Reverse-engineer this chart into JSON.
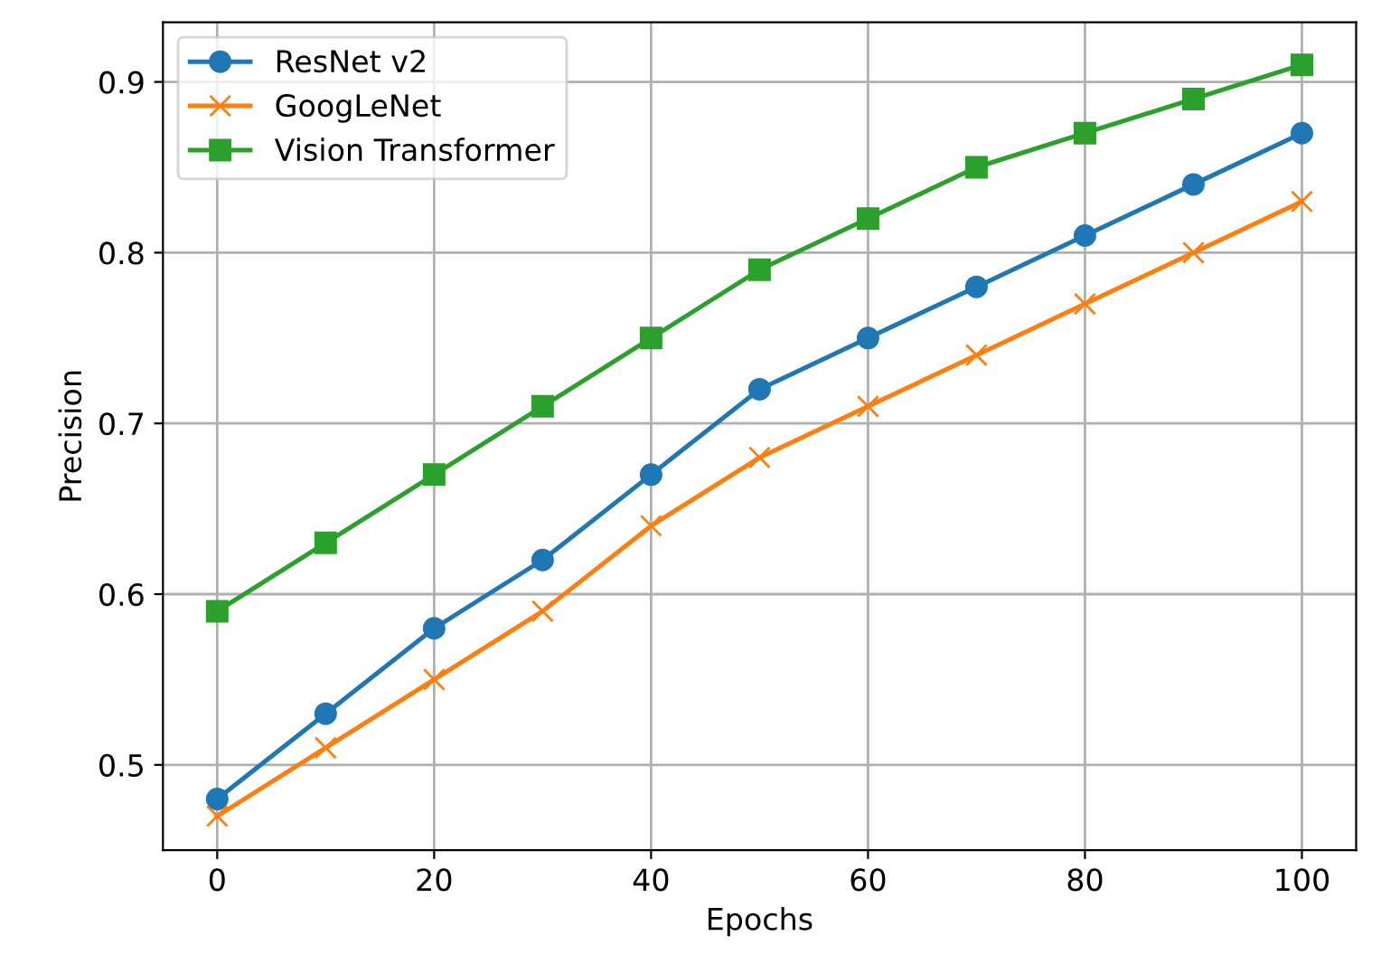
{
  "chart_data": {
    "type": "line",
    "xlabel": "Epochs",
    "ylabel": "Precision",
    "x": [
      0,
      10,
      20,
      30,
      40,
      50,
      60,
      70,
      80,
      90,
      100
    ],
    "series": [
      {
        "name": "ResNet v2",
        "color": "#1f77b4",
        "marker": "circle",
        "values": [
          0.48,
          0.53,
          0.58,
          0.62,
          0.67,
          0.72,
          0.75,
          0.78,
          0.81,
          0.84,
          0.87
        ]
      },
      {
        "name": "GoogLeNet",
        "color": "#ff7f0e",
        "marker": "cross",
        "values": [
          0.47,
          0.51,
          0.55,
          0.59,
          0.64,
          0.68,
          0.71,
          0.74,
          0.77,
          0.8,
          0.83
        ]
      },
      {
        "name": "Vision Transformer",
        "color": "#2ca02c",
        "marker": "square",
        "values": [
          0.59,
          0.63,
          0.67,
          0.71,
          0.75,
          0.79,
          0.82,
          0.85,
          0.87,
          0.89,
          0.91
        ]
      }
    ],
    "xlim": [
      -5,
      105
    ],
    "ylim": [
      0.45,
      0.935
    ],
    "xticks": [
      0,
      20,
      40,
      60,
      80,
      100
    ],
    "yticks": [
      {
        "value": 0.5,
        "label": "0.5"
      },
      {
        "value": 0.6,
        "label": "0.6"
      },
      {
        "value": 0.7,
        "label": "0.7"
      },
      {
        "value": 0.8,
        "label": "0.8"
      },
      {
        "value": 0.9,
        "label": "0.9"
      }
    ],
    "grid": true,
    "legend": "top left",
    "line_style": "solid"
  }
}
